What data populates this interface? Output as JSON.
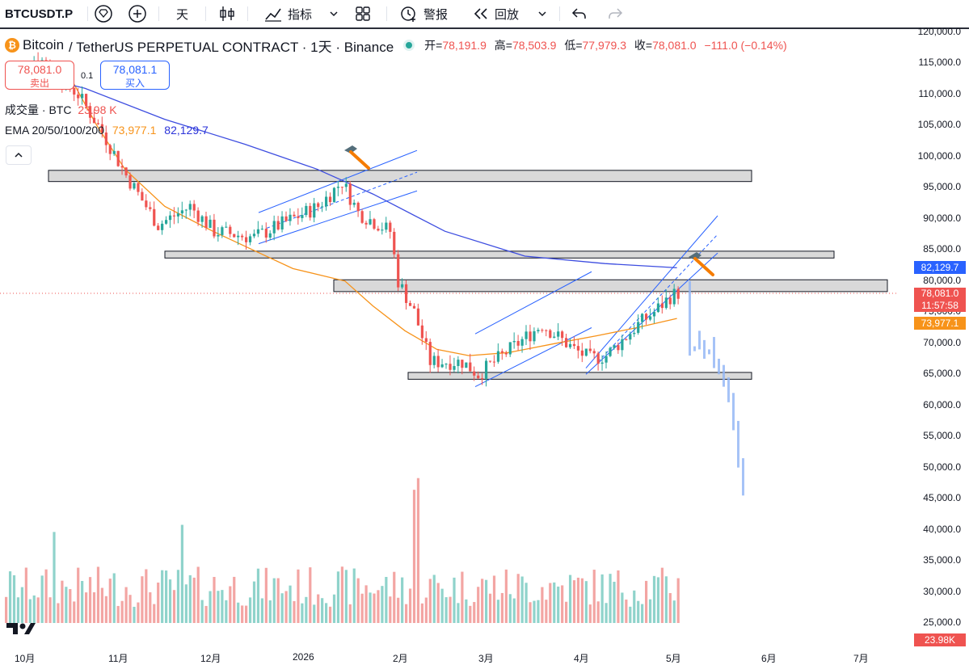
{
  "toolbar": {
    "symbol": "BTCUSDT.P",
    "interval": "天",
    "indicators_label": "指标",
    "alert_label": "警报",
    "replay_label": "回放"
  },
  "legend": {
    "symbol_name": "Bitcoin",
    "description": "/ TetherUS PERPETUAL CONTRACT · 1天 · Binance",
    "open_label": "开=",
    "open_value": "78,191.9",
    "high_label": "高=",
    "high_value": "78,503.9",
    "low_label": "低=",
    "low_value": "77,979.3",
    "close_label": "收=",
    "close_value": "78,081.0",
    "change": "−111.0 (−0.14%)",
    "volume_label": "成交量 · BTC",
    "volume_value": "23.98 K",
    "ema_label": "EMA 20/50/100/200",
    "ema_value1": "73,977.1",
    "ema_value2": "82,129.7"
  },
  "trade": {
    "sell_price": "78,081.0",
    "sell_label": "卖出",
    "spread": "0.1",
    "buy_price": "78,081.1",
    "buy_label": "买入"
  },
  "price_axis": {
    "labels": [
      "120,000.0",
      "115,000.0",
      "110,000.0",
      "105,000.0",
      "100,000.0",
      "95,000.0",
      "90,000.0",
      "85,000.0",
      "80,000.0",
      "75,000.0",
      "70,000.0",
      "65,000.0",
      "60,000.0",
      "55,000.0",
      "50,000.0",
      "45,000.0",
      "40,000.0",
      "35,000.0",
      "30,000.0",
      "25,000.0"
    ],
    "tag_ema_slow": "82,129.7",
    "tag_price": "78,081.0",
    "tag_countdown": "11:57:58",
    "tag_ema_fast": "73,977.1",
    "tag_volume": "23.98K"
  },
  "time_axis": {
    "labels": [
      "10月",
      "11月",
      "12月",
      "2026",
      "2月",
      "3月",
      "4月",
      "5月",
      "6月",
      "7月"
    ]
  },
  "colors": {
    "up": "#26a69a",
    "down": "#ef5350",
    "ema_fast": "#f7931a",
    "ema_slow": "#3d4de0",
    "channel": "#2962ff",
    "zone_fill": "#d9d9d9",
    "projection": "#90b4f5"
  },
  "chart_data": {
    "type": "candlestick",
    "price_range": [
      25000,
      120000
    ],
    "zones": [
      {
        "from": 96000,
        "to": 97800
      },
      {
        "from": 83700,
        "to": 84800
      },
      {
        "from": 78300,
        "to": 80200
      },
      {
        "from": 64200,
        "to": 65300
      }
    ],
    "ema_fast": [
      [
        1,
        115000
      ],
      [
        17,
        112000
      ],
      [
        23,
        105000
      ],
      [
        30,
        98000
      ],
      [
        40,
        92000
      ],
      [
        52,
        88000
      ],
      [
        62,
        85000
      ],
      [
        72,
        82000
      ],
      [
        85,
        80000
      ],
      [
        92,
        76000
      ],
      [
        100,
        72000
      ],
      [
        108,
        69000
      ],
      [
        116,
        68000
      ],
      [
        126,
        68500
      ],
      [
        138,
        70000
      ],
      [
        148,
        71200
      ],
      [
        158,
        72500
      ],
      [
        168,
        73977
      ]
    ],
    "ema_slow": [
      [
        1,
        114000
      ],
      [
        20,
        111000
      ],
      [
        40,
        106000
      ],
      [
        60,
        102000
      ],
      [
        78,
        98000
      ],
      [
        92,
        94000
      ],
      [
        110,
        88000
      ],
      [
        130,
        84000
      ],
      [
        150,
        82800
      ],
      [
        168,
        82130
      ]
    ],
    "projection_lows": [
      68000,
      70500,
      69000,
      67500,
      69500,
      66000,
      65000,
      63000,
      60500,
      56000,
      50000,
      45500
    ]
  }
}
